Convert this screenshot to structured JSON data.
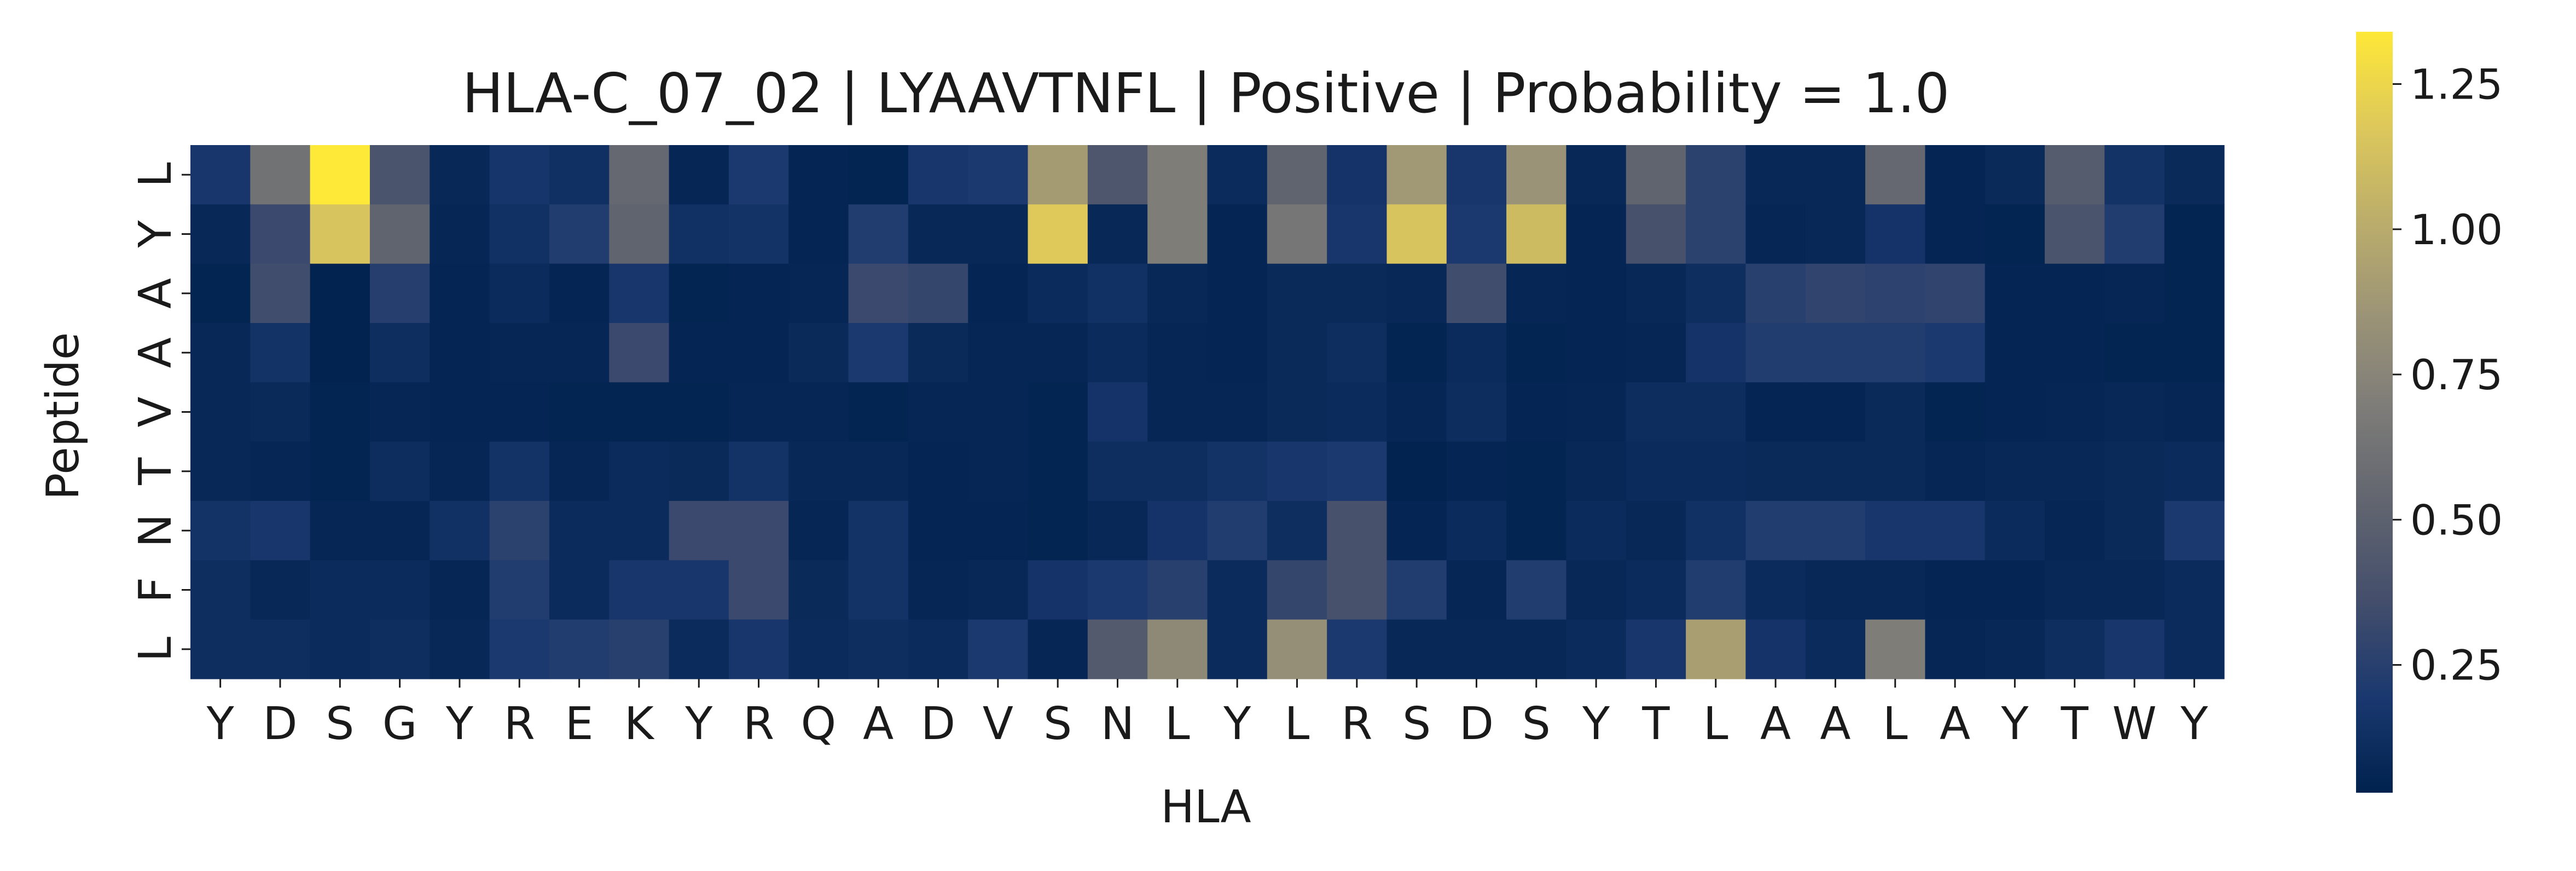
{
  "chart_data": {
    "type": "heatmap",
    "title": "HLA-C_07_02 | LYAAVTNFL | Positive | Probability = 1.0",
    "xlabel": "HLA",
    "ylabel": "Peptide",
    "x_tick_labels": [
      "Y",
      "D",
      "S",
      "G",
      "Y",
      "R",
      "E",
      "K",
      "Y",
      "R",
      "Q",
      "A",
      "D",
      "V",
      "S",
      "N",
      "L",
      "Y",
      "L",
      "R",
      "S",
      "D",
      "S",
      "Y",
      "T",
      "L",
      "A",
      "A",
      "L",
      "A",
      "Y",
      "T",
      "W",
      "Y"
    ],
    "y_tick_labels": [
      "L",
      "Y",
      "A",
      "A",
      "V",
      "T",
      "N",
      "F",
      "L"
    ],
    "colormap": "cividis",
    "colorbar": {
      "min": 0.03,
      "max": 1.34,
      "ticks": [
        0.25,
        0.5,
        0.75,
        1.0,
        1.25
      ],
      "tick_labels": [
        "0.25",
        "0.50",
        "0.75",
        "1.00",
        "1.25"
      ]
    },
    "values": [
      [
        0.18,
        0.62,
        1.34,
        0.4,
        0.08,
        0.17,
        0.13,
        0.55,
        0.07,
        0.2,
        0.06,
        0.05,
        0.18,
        0.2,
        0.9,
        0.42,
        0.7,
        0.1,
        0.52,
        0.16,
        0.88,
        0.18,
        0.85,
        0.08,
        0.52,
        0.26,
        0.08,
        0.08,
        0.55,
        0.06,
        0.09,
        0.46,
        0.15,
        0.09
      ],
      [
        0.08,
        0.32,
        1.15,
        0.52,
        0.07,
        0.14,
        0.22,
        0.52,
        0.14,
        0.15,
        0.06,
        0.22,
        0.08,
        0.08,
        1.18,
        0.08,
        0.7,
        0.06,
        0.65,
        0.18,
        1.15,
        0.2,
        1.1,
        0.06,
        0.38,
        0.26,
        0.07,
        0.08,
        0.16,
        0.06,
        0.05,
        0.4,
        0.22,
        0.05
      ],
      [
        0.05,
        0.35,
        0.04,
        0.24,
        0.06,
        0.1,
        0.06,
        0.18,
        0.05,
        0.06,
        0.07,
        0.32,
        0.3,
        0.06,
        0.1,
        0.14,
        0.08,
        0.06,
        0.09,
        0.09,
        0.08,
        0.35,
        0.07,
        0.06,
        0.08,
        0.12,
        0.25,
        0.28,
        0.27,
        0.28,
        0.06,
        0.06,
        0.07,
        0.05
      ],
      [
        0.08,
        0.15,
        0.04,
        0.12,
        0.06,
        0.07,
        0.07,
        0.32,
        0.06,
        0.06,
        0.09,
        0.2,
        0.09,
        0.07,
        0.07,
        0.1,
        0.07,
        0.06,
        0.09,
        0.12,
        0.05,
        0.1,
        0.05,
        0.06,
        0.07,
        0.16,
        0.22,
        0.22,
        0.22,
        0.2,
        0.06,
        0.06,
        0.05,
        0.05
      ],
      [
        0.08,
        0.09,
        0.05,
        0.07,
        0.06,
        0.06,
        0.05,
        0.05,
        0.05,
        0.07,
        0.07,
        0.05,
        0.07,
        0.07,
        0.05,
        0.16,
        0.07,
        0.07,
        0.09,
        0.1,
        0.07,
        0.11,
        0.06,
        0.07,
        0.11,
        0.11,
        0.06,
        0.06,
        0.09,
        0.05,
        0.06,
        0.07,
        0.08,
        0.07
      ],
      [
        0.08,
        0.07,
        0.05,
        0.11,
        0.07,
        0.15,
        0.07,
        0.1,
        0.09,
        0.15,
        0.08,
        0.08,
        0.06,
        0.07,
        0.05,
        0.12,
        0.12,
        0.15,
        0.18,
        0.2,
        0.04,
        0.06,
        0.05,
        0.08,
        0.1,
        0.1,
        0.09,
        0.09,
        0.09,
        0.07,
        0.08,
        0.08,
        0.09,
        0.1
      ],
      [
        0.15,
        0.18,
        0.07,
        0.07,
        0.14,
        0.26,
        0.1,
        0.1,
        0.32,
        0.32,
        0.07,
        0.15,
        0.06,
        0.06,
        0.05,
        0.08,
        0.16,
        0.22,
        0.12,
        0.38,
        0.06,
        0.1,
        0.05,
        0.1,
        0.08,
        0.14,
        0.22,
        0.22,
        0.18,
        0.18,
        0.1,
        0.07,
        0.09,
        0.2
      ],
      [
        0.12,
        0.08,
        0.1,
        0.1,
        0.07,
        0.22,
        0.1,
        0.18,
        0.18,
        0.32,
        0.09,
        0.15,
        0.07,
        0.08,
        0.16,
        0.2,
        0.25,
        0.1,
        0.3,
        0.38,
        0.22,
        0.07,
        0.22,
        0.08,
        0.1,
        0.22,
        0.1,
        0.08,
        0.08,
        0.06,
        0.06,
        0.08,
        0.08,
        0.1
      ],
      [
        0.12,
        0.12,
        0.1,
        0.12,
        0.08,
        0.2,
        0.22,
        0.25,
        0.1,
        0.18,
        0.1,
        0.12,
        0.1,
        0.2,
        0.07,
        0.45,
        0.78,
        0.1,
        0.82,
        0.2,
        0.08,
        0.08,
        0.08,
        0.1,
        0.18,
        0.92,
        0.16,
        0.1,
        0.7,
        0.07,
        0.08,
        0.12,
        0.18,
        0.1
      ]
    ]
  }
}
